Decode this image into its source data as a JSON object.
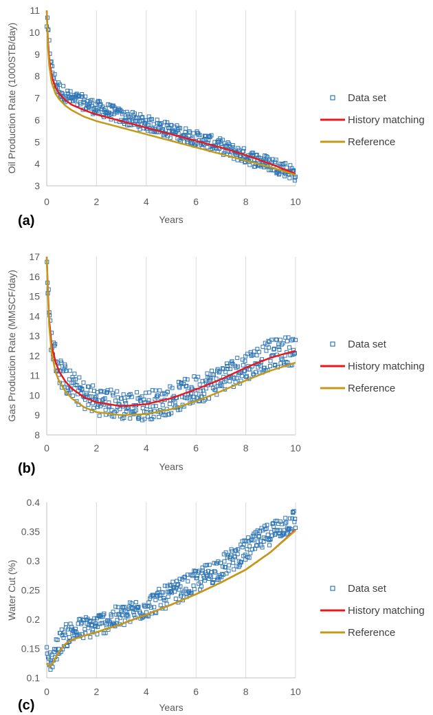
{
  "chart_data": [
    {
      "type": "scatter",
      "panel_label": "(a)",
      "xlabel": "Years",
      "ylabel": "Oil Production Rate (1000STB/day)",
      "xlim": [
        0,
        10
      ],
      "ylim": [
        3,
        11
      ],
      "x_ticks": [
        "0",
        "2",
        "4",
        "6",
        "8",
        "10"
      ],
      "y_ticks": [
        "3",
        "4",
        "5",
        "6",
        "7",
        "8",
        "9",
        "10",
        "11"
      ],
      "grid": "vertical",
      "legend_position": "right",
      "series": [
        {
          "name": "Data set",
          "style": "markers",
          "color": "#2E75B6",
          "noise": 0.35,
          "x": [
            0.02,
            0.1,
            0.2,
            0.35,
            0.5,
            0.7,
            1,
            1.5,
            2,
            2.5,
            3,
            3.5,
            4,
            4.5,
            5,
            5.5,
            6,
            6.5,
            7,
            7.5,
            8,
            8.5,
            9,
            9.5,
            10
          ],
          "y": [
            10.4,
            9.4,
            8.3,
            7.7,
            7.4,
            7.2,
            6.95,
            6.8,
            6.55,
            6.4,
            6.15,
            6.0,
            5.85,
            5.7,
            5.5,
            5.35,
            5.15,
            5.0,
            4.8,
            4.55,
            4.35,
            4.15,
            4.0,
            3.8,
            3.55
          ]
        },
        {
          "name": "History matching",
          "style": "line",
          "color": "#E8191E",
          "x": [
            0,
            0.05,
            0.1,
            0.2,
            0.35,
            0.5,
            0.75,
            1,
            1.5,
            2,
            3,
            4,
            5,
            6,
            7,
            8,
            9,
            10
          ],
          "y": [
            11,
            9.6,
            8.8,
            8.0,
            7.5,
            7.2,
            6.9,
            6.7,
            6.45,
            6.25,
            5.95,
            5.65,
            5.35,
            5.05,
            4.75,
            4.4,
            4.0,
            3.55
          ]
        },
        {
          "name": "Reference",
          "style": "line",
          "color": "#C39A18",
          "x": [
            0,
            0.05,
            0.1,
            0.2,
            0.35,
            0.5,
            0.75,
            1,
            1.5,
            2,
            3,
            4,
            5,
            6,
            7,
            8,
            9,
            10
          ],
          "y": [
            11,
            9.3,
            8.5,
            7.7,
            7.2,
            6.95,
            6.65,
            6.45,
            6.15,
            5.95,
            5.65,
            5.35,
            5.05,
            4.75,
            4.45,
            4.15,
            3.85,
            3.5
          ]
        }
      ]
    },
    {
      "type": "scatter",
      "panel_label": "(b)",
      "xlabel": "Years",
      "ylabel": "Gas Production Rate (MMSCF/day)",
      "xlim": [
        0,
        10
      ],
      "ylim": [
        8,
        17
      ],
      "x_ticks": [
        "0",
        "2",
        "4",
        "6",
        "8",
        "10"
      ],
      "y_ticks": [
        "8",
        "9",
        "10",
        "11",
        "12",
        "13",
        "14",
        "15",
        "16",
        "17"
      ],
      "grid": "vertical",
      "legend_position": "right",
      "series": [
        {
          "name": "Data set",
          "style": "markers",
          "color": "#2E75B6",
          "noise": 0.75,
          "x": [
            0.02,
            0.1,
            0.2,
            0.35,
            0.5,
            0.7,
            1,
            1.5,
            2,
            2.5,
            3,
            3.5,
            4,
            4.5,
            5,
            5.5,
            6,
            6.5,
            7,
            7.5,
            8,
            8.5,
            9,
            9.5,
            10
          ],
          "y": [
            16.3,
            14.0,
            12.6,
            11.9,
            11.3,
            10.9,
            10.5,
            10.0,
            9.75,
            9.6,
            9.5,
            9.45,
            9.5,
            9.6,
            9.8,
            10.05,
            10.3,
            10.55,
            10.85,
            11.15,
            11.5,
            11.8,
            12.05,
            12.2,
            12.3
          ]
        },
        {
          "name": "History matching",
          "style": "line",
          "color": "#E8191E",
          "x": [
            0,
            0.05,
            0.1,
            0.2,
            0.35,
            0.5,
            0.75,
            1,
            1.5,
            2,
            3,
            4,
            5,
            6,
            7,
            8,
            9,
            10
          ],
          "y": [
            17,
            15.2,
            13.8,
            12.5,
            11.7,
            11.2,
            10.7,
            10.35,
            9.9,
            9.65,
            9.45,
            9.55,
            9.85,
            10.3,
            10.8,
            11.4,
            11.9,
            12.25
          ]
        },
        {
          "name": "Reference",
          "style": "line",
          "color": "#C39A18",
          "x": [
            0,
            0.05,
            0.1,
            0.2,
            0.35,
            0.5,
            0.75,
            1,
            1.5,
            2,
            3,
            4,
            5,
            6,
            7,
            8,
            9,
            10
          ],
          "y": [
            17,
            15.0,
            13.5,
            12.1,
            11.2,
            10.7,
            10.2,
            9.85,
            9.4,
            9.15,
            9.0,
            9.05,
            9.3,
            9.7,
            10.2,
            10.75,
            11.25,
            11.65
          ]
        }
      ]
    },
    {
      "type": "scatter",
      "panel_label": "(c)",
      "xlabel": "Years",
      "ylabel": "Water Cut (%)",
      "xlim": [
        0,
        10
      ],
      "ylim": [
        0.1,
        0.4
      ],
      "x_ticks": [
        "0",
        "2",
        "4",
        "6",
        "8",
        "10"
      ],
      "y_ticks": [
        "0.1",
        "0.15",
        "0.2",
        "0.25",
        "0.3",
        "0.35",
        "0.4"
      ],
      "grid": "vertical",
      "legend_position": "right",
      "series": [
        {
          "name": "Data set",
          "style": "markers",
          "color": "#2E75B6",
          "noise": 0.02,
          "x": [
            0.02,
            0.1,
            0.2,
            0.35,
            0.5,
            0.7,
            1,
            1.5,
            2,
            2.5,
            3,
            3.5,
            4,
            4.5,
            5,
            5.5,
            6,
            6.5,
            7,
            7.5,
            8,
            8.5,
            9,
            9.5,
            10
          ],
          "y": [
            0.135,
            0.13,
            0.13,
            0.145,
            0.16,
            0.17,
            0.178,
            0.185,
            0.19,
            0.198,
            0.205,
            0.213,
            0.222,
            0.232,
            0.243,
            0.253,
            0.265,
            0.277,
            0.29,
            0.303,
            0.318,
            0.333,
            0.348,
            0.36,
            0.37
          ]
        },
        {
          "name": "History matching",
          "style": "line",
          "color": "#E8191E",
          "x": [
            0,
            0.1,
            0.2,
            0.3,
            0.5,
            0.75,
            1,
            1.5,
            2,
            3,
            4,
            5,
            6,
            7,
            8,
            9,
            10
          ],
          "y": [
            0.125,
            0.12,
            0.122,
            0.13,
            0.145,
            0.158,
            0.165,
            0.172,
            0.178,
            0.192,
            0.208,
            0.225,
            0.243,
            0.263,
            0.285,
            0.315,
            0.353
          ]
        },
        {
          "name": "Reference",
          "style": "line",
          "color": "#C39A18",
          "x": [
            0,
            0.1,
            0.2,
            0.3,
            0.5,
            0.75,
            1,
            1.5,
            2,
            3,
            4,
            5,
            6,
            7,
            8,
            9,
            10
          ],
          "y": [
            0.125,
            0.12,
            0.122,
            0.13,
            0.145,
            0.158,
            0.165,
            0.172,
            0.178,
            0.192,
            0.208,
            0.225,
            0.243,
            0.263,
            0.285,
            0.315,
            0.352
          ]
        }
      ]
    }
  ]
}
